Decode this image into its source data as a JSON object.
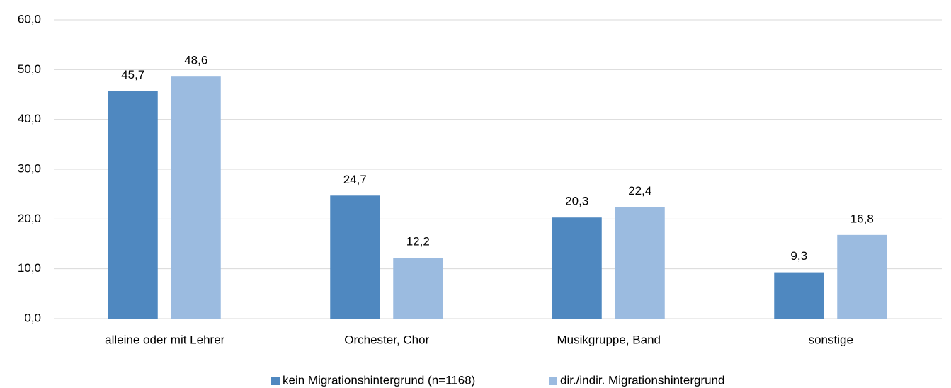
{
  "chart_data": {
    "type": "bar",
    "categories": [
      "alleine oder mit Lehrer",
      "Orchester, Chor",
      "Musikgruppe, Band",
      "sonstige"
    ],
    "series": [
      {
        "name": "kein Migrationshintergrund (n=1168)",
        "color": "#4f88c0",
        "values": [
          45.7,
          24.7,
          20.3,
          9.3
        ],
        "value_labels": [
          "45,7",
          "24,7",
          "20,3",
          "9,3"
        ]
      },
      {
        "name": "dir./indir. Migrationshintergrund",
        "color": "#9bbbe0",
        "values": [
          48.6,
          12.2,
          22.4,
          16.8
        ],
        "value_labels": [
          "48,6",
          "12,2",
          "22,4",
          "16,8"
        ]
      }
    ],
    "ylim": [
      0,
      60
    ],
    "yticks": [
      {
        "value": 0,
        "label": "0,0"
      },
      {
        "value": 10,
        "label": "10,0"
      },
      {
        "value": 20,
        "label": "20,0"
      },
      {
        "value": 30,
        "label": "30,0"
      },
      {
        "value": 40,
        "label": "40,0"
      },
      {
        "value": 50,
        "label": "50,0"
      },
      {
        "value": 60,
        "label": "60,0"
      }
    ],
    "grid": true,
    "legend": "bottom"
  }
}
